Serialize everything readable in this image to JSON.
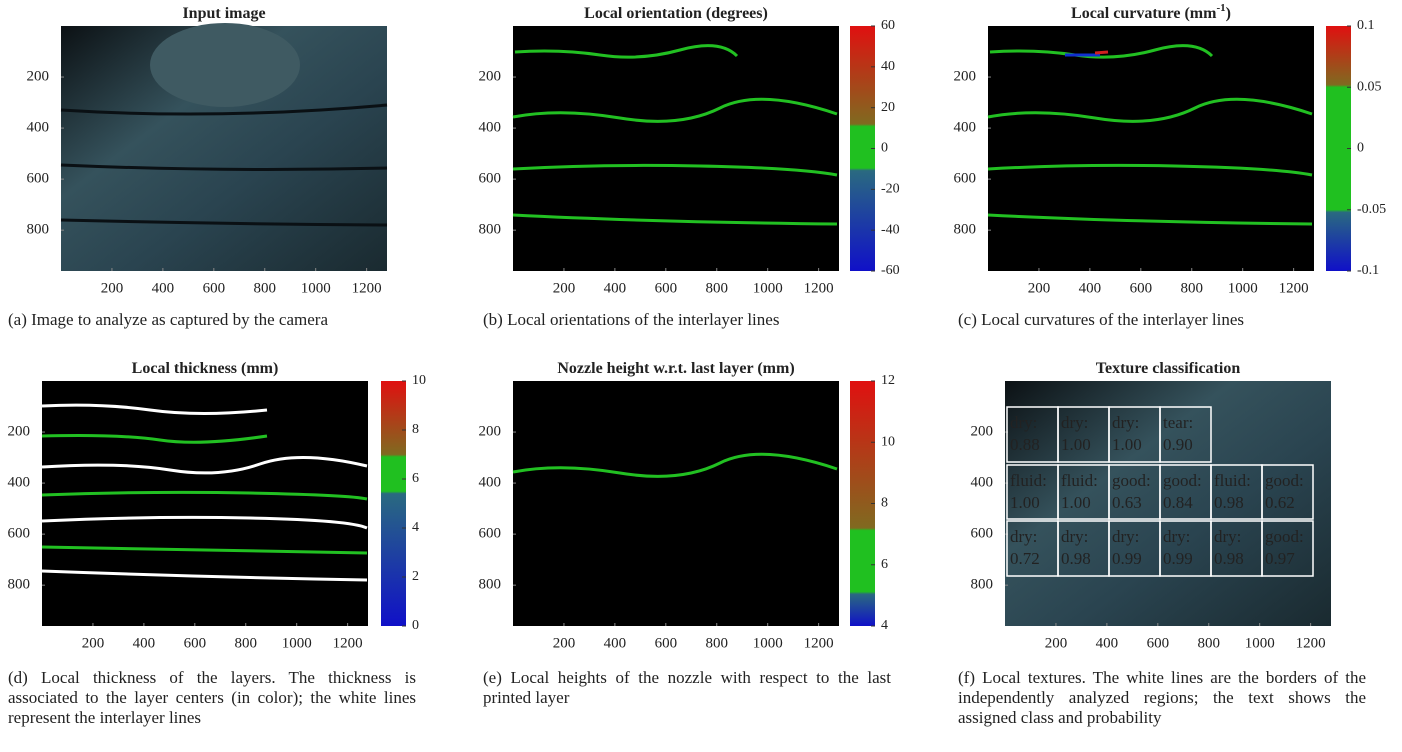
{
  "panels": [
    {
      "title": "Input image",
      "xticks": [
        200,
        400,
        600,
        800,
        1000,
        1200
      ],
      "yticks": [
        200,
        400,
        600,
        800
      ],
      "caption": "(a) Image to analyze as captured by the camera"
    },
    {
      "title": "Local orientation (degrees)",
      "xticks": [
        200,
        400,
        600,
        800,
        1000,
        1200
      ],
      "yticks": [
        200,
        400,
        600,
        800
      ],
      "colorbar": {
        "ticks": [
          60,
          40,
          20,
          0,
          -20,
          -40,
          -60
        ]
      },
      "caption": "(b) Local orientations of the interlayer lines"
    },
    {
      "title": "Local curvature (mm",
      "title_superscript": "-1",
      "title_end": ")",
      "xticks": [
        200,
        400,
        600,
        800,
        1000,
        1200
      ],
      "yticks": [
        200,
        400,
        600,
        800
      ],
      "colorbar": {
        "ticks": [
          0.1,
          0.05,
          0,
          -0.05,
          -0.1
        ]
      },
      "caption": "(c) Local curvatures of the interlayer lines"
    },
    {
      "title": "Local thickness (mm)",
      "xticks": [
        200,
        400,
        600,
        800,
        1000,
        1200
      ],
      "yticks": [
        200,
        400,
        600,
        800
      ],
      "colorbar": {
        "ticks": [
          10,
          8,
          6,
          4,
          2,
          0
        ]
      },
      "caption": "(d) Local thickness of the layers. The thickness is associated to the layer centers (in color); the white lines represent the interlayer lines"
    },
    {
      "title": "Nozzle height w.r.t. last layer (mm)",
      "xticks": [
        200,
        400,
        600,
        800,
        1000,
        1200
      ],
      "yticks": [
        200,
        400,
        600,
        800
      ],
      "colorbar": {
        "ticks": [
          12,
          10,
          8,
          6,
          4
        ]
      },
      "caption": "(e) Local heights of the nozzle with respect to the last printed layer"
    },
    {
      "title": "Texture classification",
      "xticks": [
        200,
        400,
        600,
        800,
        1000,
        1200
      ],
      "yticks": [
        200,
        400,
        600,
        800
      ],
      "cells": [
        [
          {
            "label": "dry:",
            "prob": "0.88",
            "color": "#f2c21a"
          },
          {
            "label": "dry:",
            "prob": "1.00",
            "color": "#f2c21a"
          },
          {
            "label": "dry:",
            "prob": "1.00",
            "color": "#f2c21a"
          },
          {
            "label": "tear:",
            "prob": "0.90",
            "color": "#e01818"
          }
        ],
        [
          {
            "label": "fluid:",
            "prob": "1.00",
            "color": "#2eaee8"
          },
          {
            "label": "fluid:",
            "prob": "1.00",
            "color": "#2eaee8"
          },
          {
            "label": "good:",
            "prob": "0.63",
            "color": "#2ec02e"
          },
          {
            "label": "good:",
            "prob": "0.84",
            "color": "#2ec02e"
          },
          {
            "label": "fluid:",
            "prob": "0.98",
            "color": "#2eaee8"
          },
          {
            "label": "good:",
            "prob": "0.62",
            "color": "#2ec02e"
          }
        ],
        [
          {
            "label": "dry:",
            "prob": "0.72",
            "color": "#f2c21a"
          },
          {
            "label": "dry:",
            "prob": "0.98",
            "color": "#f2c21a"
          },
          {
            "label": "dry:",
            "prob": "0.99",
            "color": "#f2c21a"
          },
          {
            "label": "dry:",
            "prob": "0.99",
            "color": "#f2c21a"
          },
          {
            "label": "dry:",
            "prob": "0.98",
            "color": "#f2c21a"
          },
          {
            "label": "good:",
            "prob": "0.97",
            "color": "#2ec02e"
          }
        ]
      ],
      "caption": "(f) Local textures. The white lines are the borders of the independently analyzed regions; the text shows the assigned class and probability"
    }
  ]
}
